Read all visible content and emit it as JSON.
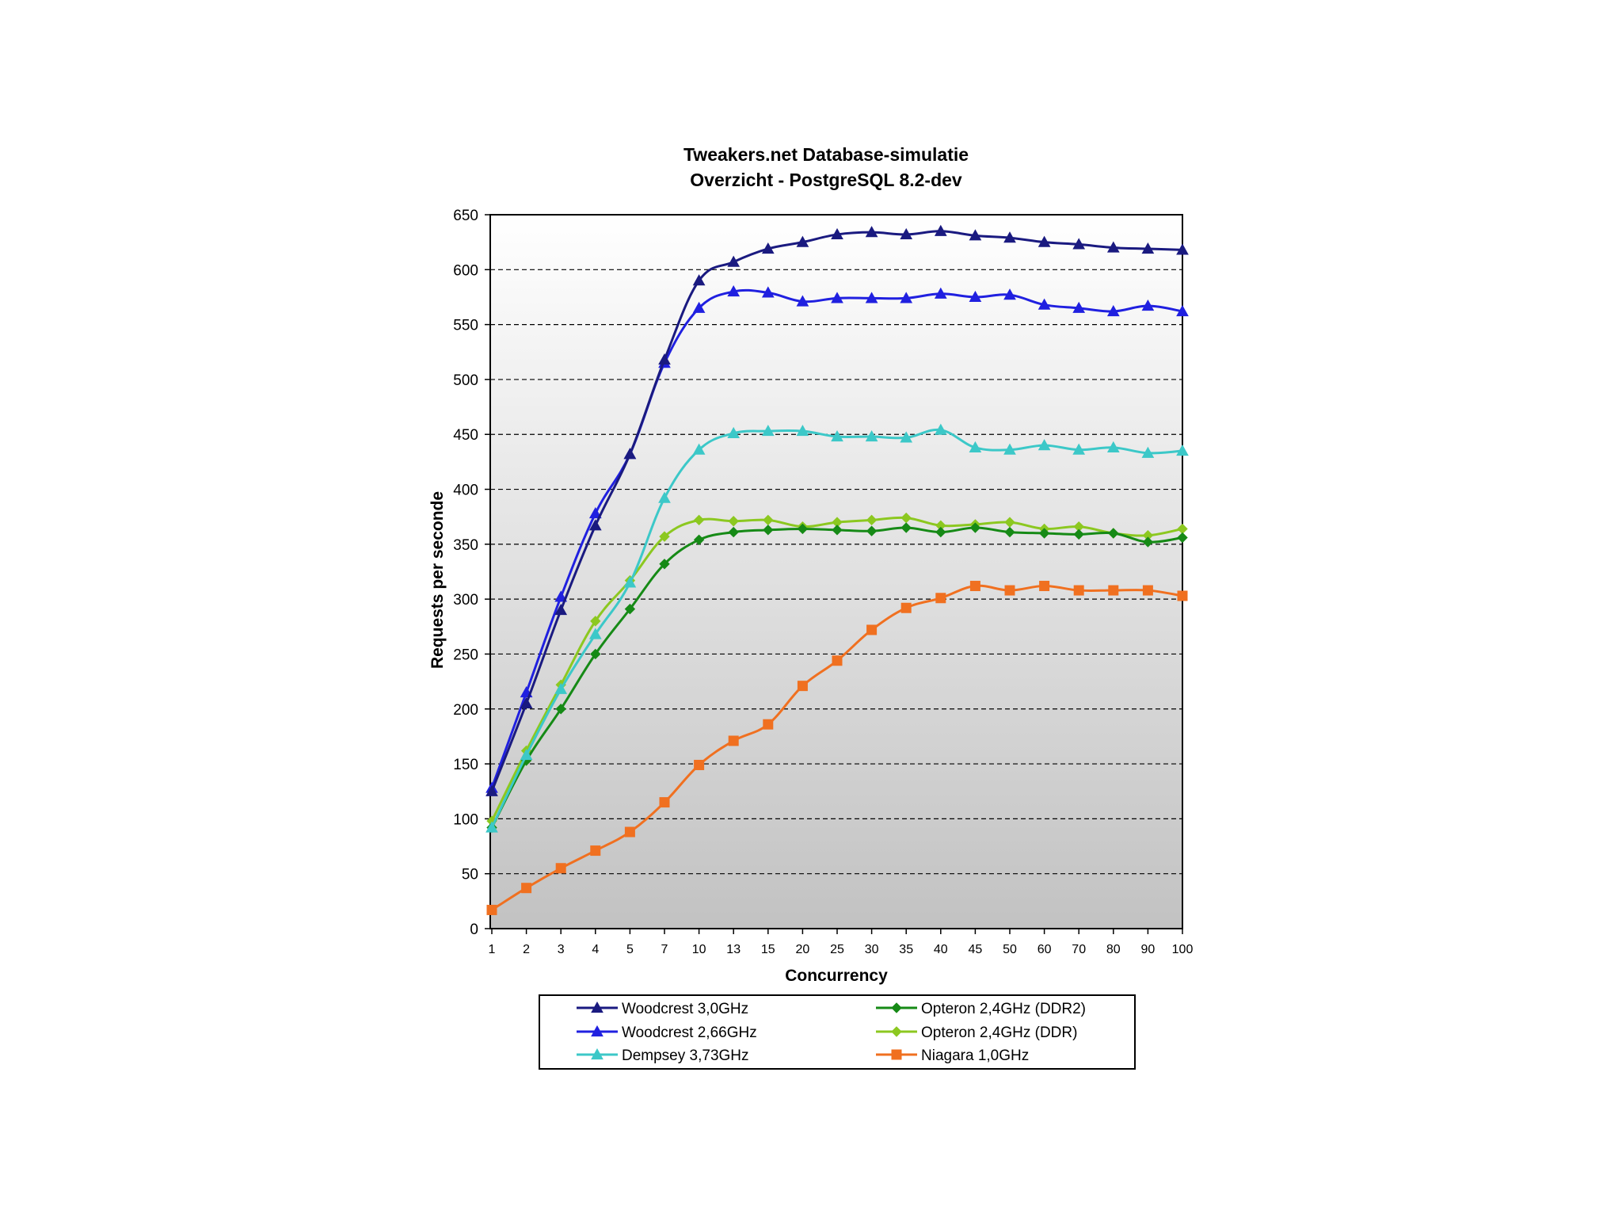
{
  "chart_data": {
    "type": "line",
    "title": "Tweakers.net Database-simulatie",
    "subtitle": "Overzicht - PostgreSQL 8.2-dev",
    "xlabel": "Concurrency",
    "ylabel": "Requests per seconde",
    "ylim": [
      0,
      650
    ],
    "ytick_step": 50,
    "y_ticks": [
      "0",
      "50",
      "100",
      "150",
      "200",
      "250",
      "300",
      "350",
      "400",
      "450",
      "500",
      "550",
      "600",
      "650"
    ],
    "categories": [
      "1",
      "2",
      "3",
      "4",
      "5",
      "7",
      "10",
      "13",
      "15",
      "20",
      "25",
      "30",
      "35",
      "40",
      "45",
      "50",
      "60",
      "70",
      "80",
      "90",
      "100"
    ],
    "grid": "horizontal dashed",
    "legend_position": "bottom",
    "series": [
      {
        "name": "Woodcrest 3,0GHz",
        "color": "#1a1a80",
        "marker": "triangle",
        "values": [
          125,
          205,
          290,
          367,
          432,
          518,
          590,
          607,
          619,
          625,
          632,
          634,
          632,
          635,
          631,
          629,
          625,
          623,
          620,
          619,
          618
        ]
      },
      {
        "name": "Woodcrest 2,66GHz",
        "color": "#2020e0",
        "marker": "triangle",
        "values": [
          128,
          215,
          302,
          378,
          432,
          515,
          565,
          580,
          579,
          571,
          574,
          574,
          574,
          578,
          575,
          577,
          568,
          565,
          562,
          567,
          562
        ]
      },
      {
        "name": "Dempsey 3,73GHz",
        "color": "#3cc8c8",
        "marker": "triangle",
        "values": [
          92,
          158,
          218,
          268,
          315,
          392,
          436,
          451,
          453,
          453,
          448,
          448,
          447,
          454,
          438,
          436,
          440,
          436,
          438,
          433,
          435
        ]
      },
      {
        "name": "Opteron 2,4GHz (DDR2)",
        "color": "#168a16",
        "marker": "diamond",
        "values": [
          92,
          153,
          200,
          250,
          291,
          332,
          354,
          361,
          363,
          364,
          363,
          362,
          365,
          361,
          365,
          361,
          360,
          359,
          360,
          352,
          356
        ]
      },
      {
        "name": "Opteron 2,4GHz (DDR)",
        "color": "#8cc820",
        "marker": "diamond",
        "values": [
          98,
          162,
          222,
          280,
          317,
          357,
          372,
          371,
          372,
          366,
          370,
          372,
          374,
          367,
          368,
          370,
          364,
          366,
          360,
          358,
          364
        ]
      },
      {
        "name": "Niagara 1,0GHz",
        "color": "#f07020",
        "marker": "square",
        "values": [
          17,
          37,
          55,
          71,
          88,
          115,
          149,
          171,
          186,
          221,
          244,
          272,
          292,
          301,
          312,
          308,
          312,
          308,
          308,
          308,
          303
        ]
      }
    ]
  }
}
